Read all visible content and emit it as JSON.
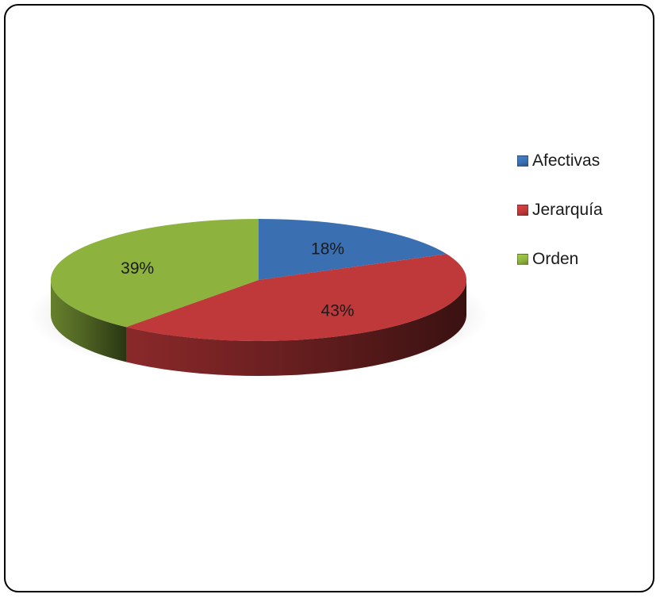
{
  "chart_data": {
    "type": "pie",
    "title": "",
    "categories": [
      "Afectivas",
      "Jerarquía",
      "Orden"
    ],
    "values": [
      18,
      43,
      39
    ],
    "labels": [
      "18%",
      "43%",
      "39%"
    ],
    "colors": [
      "#3a6fb2",
      "#c0393a",
      "#8db33e"
    ],
    "legend_position": "right"
  }
}
